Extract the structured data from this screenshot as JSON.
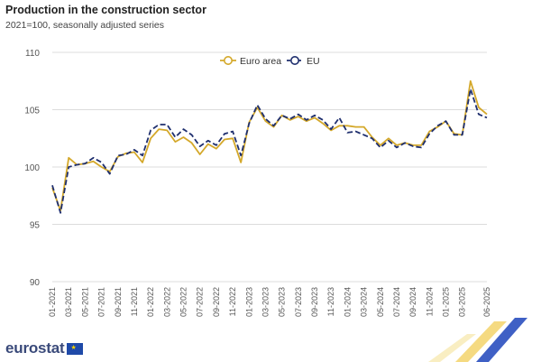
{
  "title": "Production in the construction sector",
  "subtitle": "2021=100, seasonally adjusted series",
  "logo": {
    "text": "eurostat",
    "flag": "eu-flag"
  },
  "colors": {
    "euro_area": "#d4a82a",
    "eu": "#1f2f6e",
    "grid": "#dcdcdc",
    "axis_text": "#555555"
  },
  "chart_data": {
    "type": "line",
    "title": "Production in the construction sector",
    "subtitle": "2021=100, seasonally adjusted series",
    "ylim": [
      90,
      110
    ],
    "yticks": [
      90,
      95,
      100,
      105,
      110
    ],
    "grid": true,
    "legend": "top-center",
    "x": [
      "01-2021",
      "02-2021",
      "03-2021",
      "04-2021",
      "05-2021",
      "06-2021",
      "07-2021",
      "08-2021",
      "09-2021",
      "10-2021",
      "11-2021",
      "12-2021",
      "01-2022",
      "02-2022",
      "03-2022",
      "04-2022",
      "05-2022",
      "06-2022",
      "07-2022",
      "08-2022",
      "09-2022",
      "10-2022",
      "11-2022",
      "12-2022",
      "01-2023",
      "02-2023",
      "03-2023",
      "04-2023",
      "05-2023",
      "06-2023",
      "07-2023",
      "08-2023",
      "09-2023",
      "10-2023",
      "11-2023",
      "12-2023",
      "01-2024",
      "02-2024",
      "03-2024",
      "04-2024",
      "05-2024",
      "06-2024",
      "07-2024",
      "08-2024",
      "09-2024",
      "10-2024",
      "11-2024",
      "12-2024",
      "01-2025",
      "02-2025",
      "03-2025",
      "04-2025",
      "05-2025",
      "06-2025"
    ],
    "xtick_labels": [
      "01-2021",
      "03-2021",
      "05-2021",
      "07-2021",
      "09-2021",
      "11-2021",
      "01-2022",
      "03-2022",
      "05-2022",
      "07-2022",
      "09-2022",
      "11-2022",
      "01-2023",
      "03-2023",
      "05-2023",
      "07-2023",
      "09-2023",
      "11-2023",
      "01-2024",
      "03-2024",
      "05-2024",
      "07-2024",
      "09-2024",
      "11-2024",
      "01-2025",
      "03-2025",
      "06-2025"
    ],
    "series": [
      {
        "name": "Euro area",
        "style": "solid",
        "values": [
          98.2,
          96.2,
          100.8,
          100.2,
          100.3,
          100.5,
          100.0,
          99.6,
          100.9,
          101.2,
          101.3,
          100.4,
          102.5,
          103.3,
          103.2,
          102.2,
          102.6,
          102.1,
          101.1,
          102.0,
          101.6,
          102.4,
          102.5,
          100.4,
          103.9,
          105.2,
          104.0,
          103.5,
          104.5,
          104.1,
          104.4,
          104.0,
          104.3,
          103.8,
          103.2,
          103.6,
          103.6,
          103.5,
          103.5,
          102.6,
          101.9,
          102.5,
          101.9,
          102.1,
          101.9,
          101.9,
          103.1,
          103.5,
          104.0,
          102.9,
          102.8,
          107.5,
          105.2,
          104.6
        ]
      },
      {
        "name": "EU",
        "style": "dashed",
        "values": [
          98.4,
          96.0,
          100.0,
          100.2,
          100.3,
          100.8,
          100.4,
          99.4,
          101.0,
          101.1,
          101.5,
          101.0,
          103.2,
          103.7,
          103.7,
          102.6,
          103.3,
          102.8,
          101.8,
          102.3,
          101.9,
          102.9,
          103.1,
          101.0,
          103.8,
          105.4,
          104.2,
          103.6,
          104.5,
          104.2,
          104.6,
          104.1,
          104.5,
          104.1,
          103.3,
          104.3,
          103.0,
          103.1,
          102.8,
          102.5,
          101.7,
          102.3,
          101.7,
          102.1,
          101.8,
          101.7,
          102.9,
          103.6,
          104.0,
          102.8,
          102.8,
          106.8,
          104.6,
          104.3
        ]
      }
    ]
  }
}
